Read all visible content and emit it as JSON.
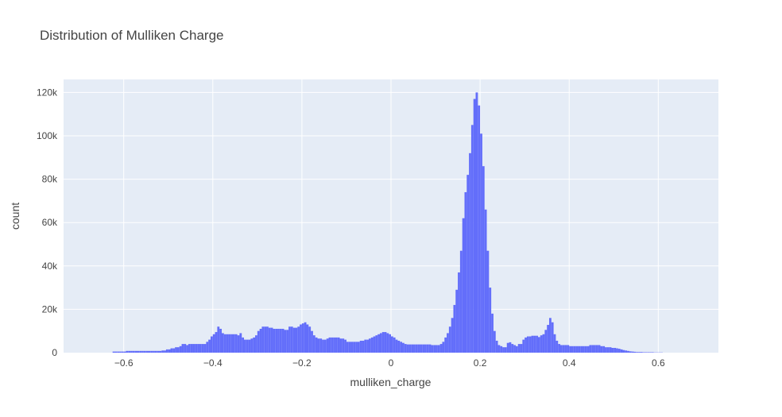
{
  "chart_data": {
    "type": "bar",
    "title": "Distribution of Mulliken Charge",
    "xlabel": "mulliken_charge",
    "ylabel": "count",
    "xlim": [
      -0.735,
      0.735
    ],
    "ylim": [
      0,
      126000
    ],
    "grid": true,
    "bar_color": "#636efa",
    "plot_bg": "#e5ecf6",
    "x_ticks": [
      -0.6,
      -0.4,
      -0.2,
      0,
      0.2,
      0.4,
      0.6
    ],
    "x_tick_labels": [
      "−0.6",
      "−0.4",
      "−0.2",
      "0",
      "0.2",
      "0.4",
      "0.6"
    ],
    "y_ticks": [
      0,
      20000,
      40000,
      60000,
      80000,
      100000,
      120000
    ],
    "y_tick_labels": [
      "0",
      "20k",
      "40k",
      "60k",
      "80k",
      "100k",
      "120k"
    ],
    "bin_width": 0.005,
    "bin_start": -0.625,
    "values": [
      500,
      500,
      500,
      500,
      500,
      500,
      800,
      800,
      800,
      800,
      800,
      800,
      800,
      800,
      800,
      800,
      800,
      800,
      800,
      800,
      800,
      800,
      1000,
      1000,
      1500,
      1500,
      2000,
      2000,
      2500,
      2500,
      3000,
      4000,
      4000,
      3500,
      4000,
      4000,
      4000,
      4000,
      4000,
      4000,
      4000,
      4000,
      5000,
      6000,
      7500,
      8500,
      9500,
      12000,
      11000,
      9000,
      8500,
      8500,
      8500,
      8500,
      8500,
      8500,
      8000,
      9000,
      7000,
      6000,
      6000,
      6000,
      6500,
      7000,
      8000,
      10000,
      11000,
      12000,
      12000,
      12000,
      11500,
      11500,
      11000,
      11000,
      11000,
      11000,
      11000,
      10500,
      10500,
      12000,
      12000,
      11500,
      11500,
      12000,
      13000,
      13500,
      14000,
      13000,
      12000,
      10000,
      8000,
      7000,
      6500,
      6500,
      6000,
      6000,
      6500,
      7000,
      7000,
      7000,
      7000,
      7000,
      6500,
      6500,
      6000,
      5000,
      5000,
      5000,
      5000,
      5000,
      5000,
      5500,
      5500,
      6000,
      6000,
      6500,
      7000,
      7500,
      8000,
      8500,
      9000,
      9500,
      9500,
      9000,
      8500,
      7500,
      7000,
      6000,
      5500,
      5000,
      4500,
      4000,
      3800,
      3800,
      3800,
      3800,
      3800,
      3800,
      3800,
      3800,
      3800,
      3800,
      3800,
      3500,
      3500,
      3500,
      3500,
      4000,
      5000,
      7000,
      9000,
      12000,
      16000,
      22000,
      29000,
      37000,
      47000,
      62000,
      74000,
      82000,
      92000,
      105000,
      117000,
      120000,
      114000,
      101000,
      86000,
      66000,
      47000,
      30000,
      18000,
      10000,
      5500,
      3500,
      3000,
      2500,
      2500,
      4500,
      4800,
      4000,
      3500,
      3000,
      4000,
      4000,
      6000,
      7000,
      7500,
      7500,
      7800,
      7800,
      7800,
      7200,
      8000,
      8500,
      10500,
      12800,
      16000,
      14000,
      8500,
      5500,
      4000,
      3500,
      3500,
      3500,
      3500,
      3000,
      3000,
      3000,
      3000,
      3000,
      3000,
      3000,
      3000,
      3000,
      3500,
      3500,
      3500,
      3500,
      3500,
      3000,
      3000,
      2500,
      2500,
      2500,
      2200,
      2200,
      2000,
      1800,
      1500,
      1200,
      1000,
      800,
      600,
      500,
      400,
      300,
      300,
      300,
      200,
      200,
      200,
      200,
      200,
      100,
      100,
      100,
      100
    ]
  }
}
